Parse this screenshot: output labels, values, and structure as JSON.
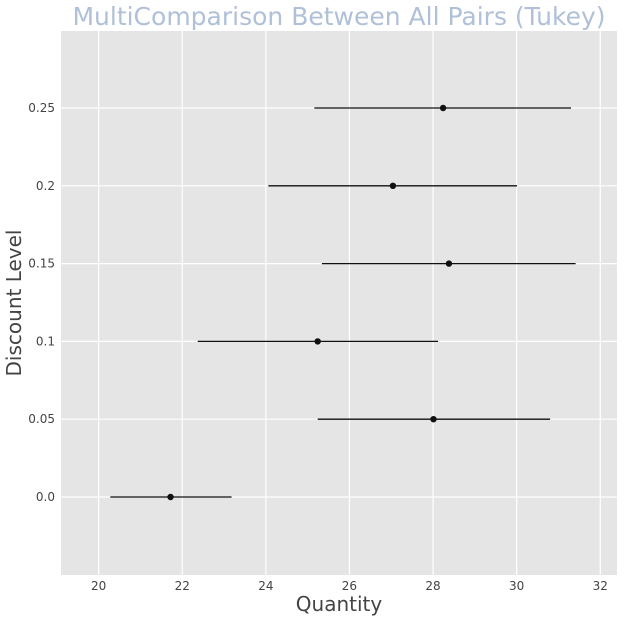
{
  "chart_data": {
    "type": "interval",
    "title": "MultiComparison Between All Pairs (Tukey)",
    "xlabel": "Quantity",
    "ylabel": "Discount Level",
    "xlim": [
      19.1,
      32.4
    ],
    "x_ticks": [
      20,
      22,
      24,
      26,
      28,
      30,
      32
    ],
    "categories": [
      "0.0",
      "0.05",
      "0.1",
      "0.15",
      "0.2",
      "0.25"
    ],
    "means": [
      21.72,
      28.01,
      25.24,
      28.38,
      27.04,
      28.24
    ],
    "lower": [
      20.28,
      25.24,
      22.37,
      25.34,
      24.06,
      25.16
    ],
    "upper": [
      23.18,
      30.8,
      28.12,
      31.41,
      30.01,
      31.3
    ],
    "grid": true,
    "colors": {
      "background": "#e5e5e5",
      "grid": "#ffffff",
      "marks": "#111111",
      "title": "#b0c0d8"
    }
  }
}
